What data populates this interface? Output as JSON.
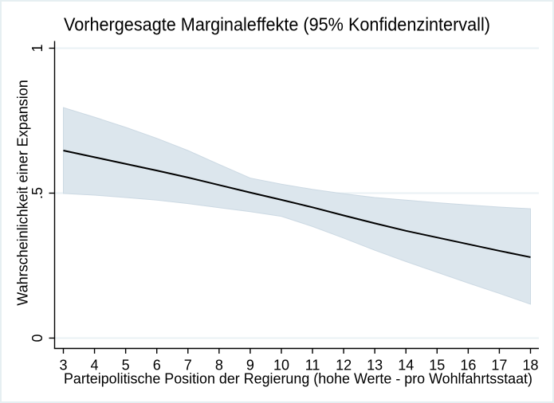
{
  "chart_data": {
    "type": "line",
    "title": "Vorhergesagte Marginaleffekte (95% Konfidenzintervall)",
    "xlabel": "Parteipolitische Position der Regierung (hohe Werte - pro Wohlfahrtsstaat)",
    "ylabel": "Wahrscheinlichkeit einer Expansion",
    "x": [
      3,
      4,
      5,
      6,
      7,
      8,
      9,
      10,
      11,
      12,
      13,
      14,
      15,
      16,
      17,
      18
    ],
    "series": [
      {
        "name": "prediction",
        "values": [
          0.647,
          0.624,
          0.601,
          0.578,
          0.554,
          0.528,
          0.502,
          0.477,
          0.451,
          0.423,
          0.396,
          0.37,
          0.347,
          0.324,
          0.301,
          0.279
        ]
      },
      {
        "name": "ci95_upper",
        "values": [
          0.795,
          0.762,
          0.727,
          0.689,
          0.647,
          0.599,
          0.552,
          0.531,
          0.513,
          0.498,
          0.485,
          0.476,
          0.467,
          0.459,
          0.452,
          0.446
        ]
      },
      {
        "name": "ci95_lower",
        "values": [
          0.499,
          0.493,
          0.485,
          0.476,
          0.464,
          0.45,
          0.436,
          0.42,
          0.385,
          0.345,
          0.303,
          0.264,
          0.227,
          0.19,
          0.154,
          0.117
        ]
      }
    ],
    "xticks": [
      3,
      4,
      5,
      6,
      7,
      8,
      9,
      10,
      11,
      12,
      13,
      14,
      15,
      16,
      17,
      18
    ],
    "yticks": [
      {
        "value": 0,
        "label": "0"
      },
      {
        "value": 0.5,
        "label": ".5"
      },
      {
        "value": 1,
        "label": "1"
      }
    ],
    "xlim": [
      3,
      18
    ],
    "ylim": [
      0,
      1
    ],
    "grid": true,
    "legend": "none"
  },
  "colors": {
    "background": "#ffffff",
    "border": "#e6eff2",
    "grid": "#eaf1f4",
    "band_fill": "#dce6ed",
    "band_edge": "#ccd9e3",
    "line": "#000000",
    "axis": "#000000",
    "text": "#000000"
  }
}
